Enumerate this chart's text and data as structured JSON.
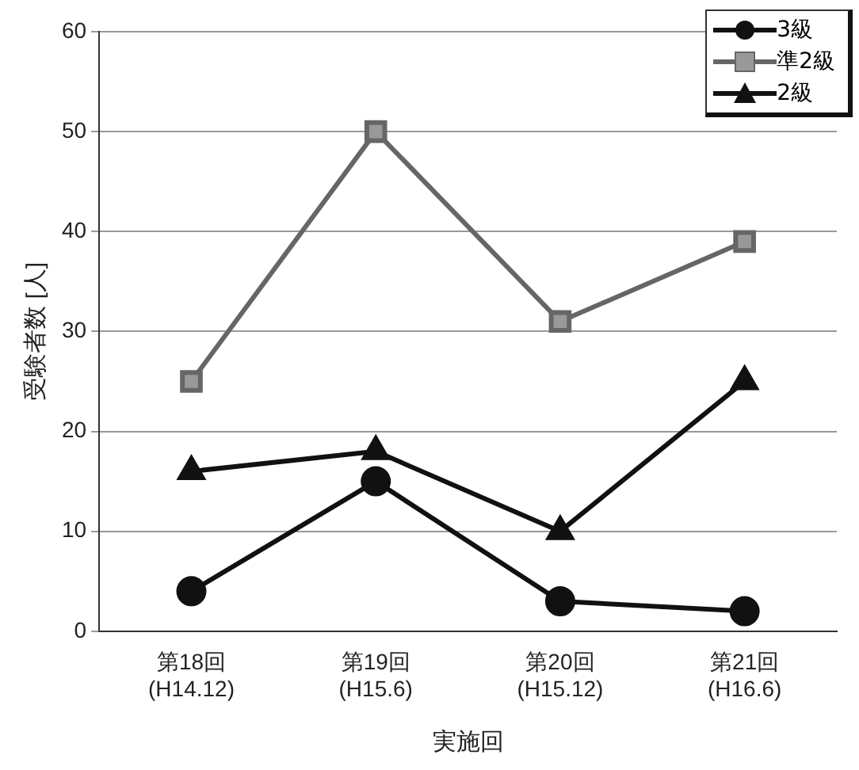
{
  "chart_data": {
    "type": "line",
    "xlabel": "実施回",
    "ylabel": "受験者数 [人]",
    "categories": [
      "第18回\n(H14.12)",
      "第19回\n(H15.6)",
      "第20回\n(H15.12)",
      "第21回\n(H16.6)"
    ],
    "series": [
      {
        "name": "3級",
        "color": "#111111",
        "marker": "circle",
        "values": [
          4,
          15,
          3,
          2
        ]
      },
      {
        "name": "準2級",
        "color": "#666666",
        "marker": "square",
        "values": [
          25,
          50,
          31,
          39
        ]
      },
      {
        "name": "2級",
        "color": "#111111",
        "marker": "triangle",
        "values": [
          16,
          18,
          10,
          25
        ]
      }
    ],
    "ylim": [
      0,
      60
    ],
    "yticks": [
      0,
      10,
      20,
      30,
      40,
      50,
      60
    ],
    "grid": "y",
    "legend": "top right"
  }
}
